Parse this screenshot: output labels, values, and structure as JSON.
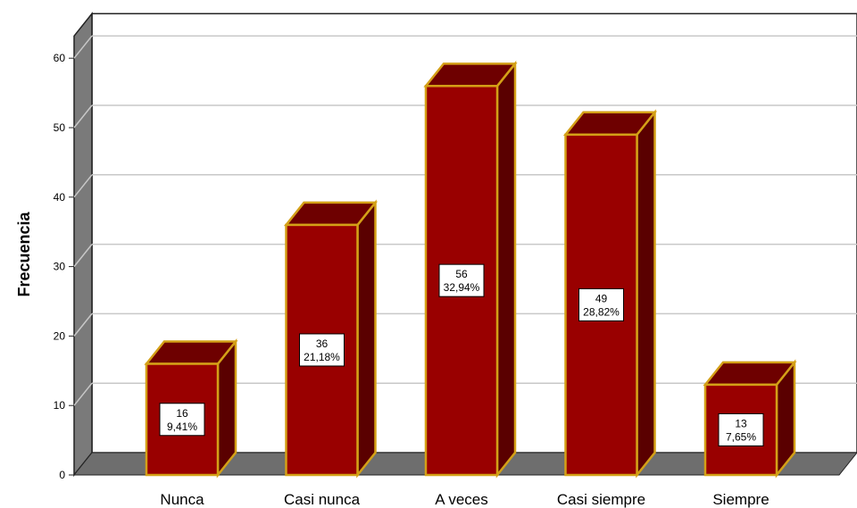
{
  "chart_data": {
    "type": "bar",
    "categories": [
      "Nunca",
      "Casi nunca",
      "A veces",
      "Casi siempre",
      "Siempre"
    ],
    "values": [
      16,
      36,
      56,
      49,
      13
    ],
    "percent_labels": [
      "9,41%",
      "21,18%",
      "32,94%",
      "28,82%",
      "7,65%"
    ],
    "ylabel": "Frecuencia",
    "xlabel": "",
    "ylim": [
      0,
      60
    ],
    "yticks": [
      0,
      10,
      20,
      30,
      40,
      50,
      60
    ],
    "grid": true,
    "style": "3d",
    "colors": {
      "bar_front": "#990000",
      "bar_side": "#5a0000",
      "bar_top": "#6e0000",
      "bar_edge": "#d4a017",
      "wall": "#ffffff",
      "floor": "#6e6e6e",
      "left_wall": "#7a7a7a",
      "grid": "#c8c8c8"
    }
  }
}
